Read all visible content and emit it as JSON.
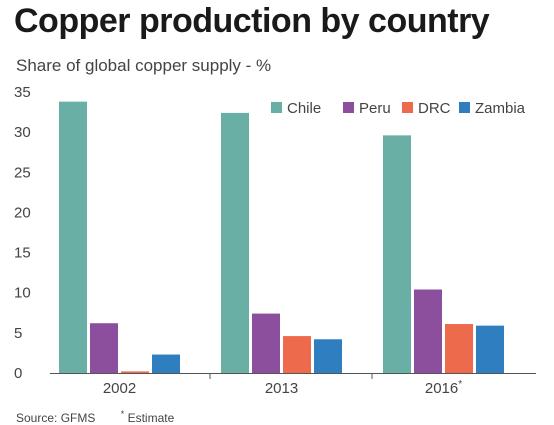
{
  "title": "Copper production by country",
  "subtitle": "Share of global copper supply - %",
  "source": "Source: GFMS",
  "note_marker": "*",
  "note": "Estimate",
  "chart_data": {
    "type": "bar",
    "title": "Copper production by country",
    "subtitle": "Share of global copper supply - %",
    "categories": [
      "2002",
      "2013",
      "2016"
    ],
    "category_markers": [
      "",
      "",
      "*"
    ],
    "series": [
      {
        "name": "Chile",
        "color": "#6aafa5",
        "values": [
          33.8,
          32.4,
          29.6
        ]
      },
      {
        "name": "Peru",
        "color": "#8b4f9e",
        "values": [
          6.2,
          7.4,
          10.4
        ]
      },
      {
        "name": "DRC",
        "color": "#ee6a4c",
        "values": [
          0.2,
          4.6,
          6.1
        ]
      },
      {
        "name": "Zambia",
        "color": "#2f7fc0",
        "values": [
          2.3,
          4.2,
          5.9
        ]
      }
    ],
    "yticks": [
      0,
      5,
      10,
      15,
      20,
      25,
      30,
      35
    ],
    "ylim": [
      0,
      35
    ],
    "grid": false,
    "legend": "top-right"
  }
}
